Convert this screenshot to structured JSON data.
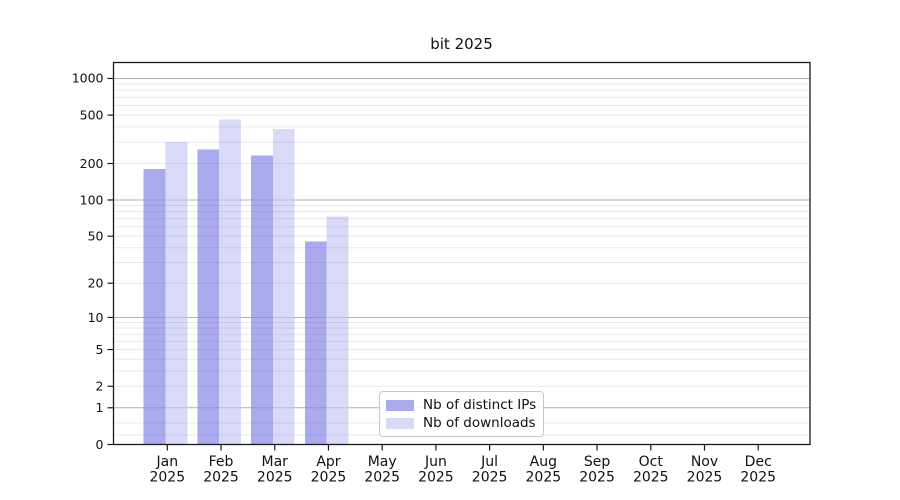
{
  "chart_data": {
    "type": "bar",
    "title": "bit 2025",
    "categories": [
      "Jan 2025",
      "Feb 2025",
      "Mar 2025",
      "Apr 2025",
      "May 2025",
      "Jun 2025",
      "Jul 2025",
      "Aug 2025",
      "Sep 2025",
      "Oct 2025",
      "Nov 2025",
      "Dec 2025"
    ],
    "series": [
      {
        "name": "Nb of distinct IPs",
        "color": "#aaaaee",
        "values": [
          180,
          260,
          233,
          45,
          null,
          null,
          null,
          null,
          null,
          null,
          null,
          null
        ]
      },
      {
        "name": "Nb of downloads",
        "color": "#d9d9f8",
        "values": [
          300,
          460,
          385,
          73,
          null,
          null,
          null,
          null,
          null,
          null,
          null,
          null
        ]
      }
    ],
    "xlabel": "",
    "ylabel": "",
    "yaxis": {
      "scale": "log10(value+1)",
      "ticks": [
        0,
        1,
        2,
        5,
        10,
        20,
        50,
        100,
        200,
        500,
        1000
      ],
      "range": [
        0,
        1400
      ]
    },
    "grid": {
      "major_values": [
        1,
        10,
        100,
        1000
      ],
      "minor_values": [
        0.2,
        0.5,
        2,
        3,
        4,
        5,
        6,
        7,
        8,
        9,
        20,
        30,
        40,
        50,
        60,
        70,
        80,
        90,
        200,
        300,
        400,
        500,
        600,
        700,
        800,
        900
      ],
      "major_color": "#b0b0b0",
      "minor_color": "#e9e9e9"
    },
    "legend_position": "bottom center inside plot"
  }
}
